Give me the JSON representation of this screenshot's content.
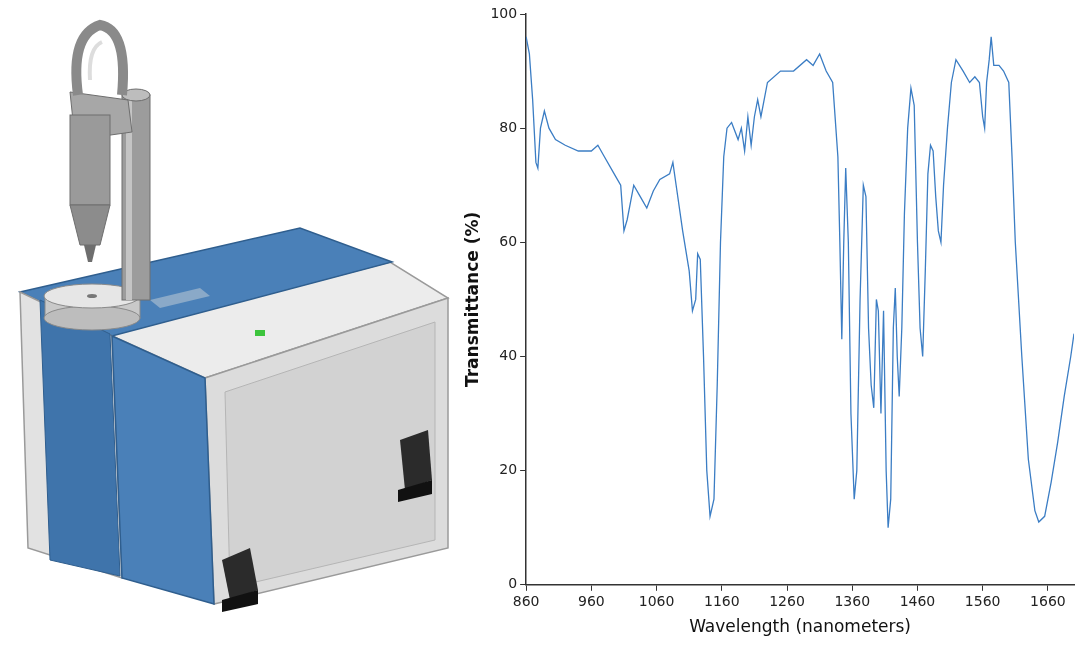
{
  "chart_data": {
    "type": "line",
    "x_label": "Wavelength (nanometers)",
    "y_label": "Transmittance (%)",
    "color": "#3b7dc4",
    "grid": false,
    "xlim": [
      860,
      1700
    ],
    "xticks": [
      860,
      960,
      1060,
      1160,
      1260,
      1360,
      1460,
      1560,
      1660
    ],
    "ylim": [
      0,
      100
    ],
    "yticks": [
      0,
      20,
      40,
      60,
      80,
      100
    ],
    "x": [
      860,
      865,
      870,
      875,
      878,
      882,
      888,
      895,
      905,
      920,
      940,
      960,
      970,
      980,
      995,
      1005,
      1010,
      1015,
      1025,
      1035,
      1045,
      1055,
      1065,
      1080,
      1085,
      1090,
      1100,
      1110,
      1115,
      1120,
      1123,
      1127,
      1132,
      1137,
      1142,
      1148,
      1153,
      1158,
      1163,
      1168,
      1175,
      1185,
      1190,
      1195,
      1200,
      1205,
      1210,
      1215,
      1220,
      1230,
      1250,
      1270,
      1290,
      1300,
      1310,
      1320,
      1330,
      1338,
      1341,
      1344,
      1347,
      1350,
      1354,
      1358,
      1363,
      1367,
      1372,
      1377,
      1381,
      1385,
      1389,
      1393,
      1397,
      1400,
      1404,
      1408,
      1412,
      1415,
      1419,
      1423,
      1426,
      1429,
      1432,
      1436,
      1440,
      1445,
      1450,
      1455,
      1460,
      1464,
      1468,
      1472,
      1476,
      1480,
      1484,
      1488,
      1492,
      1496,
      1500,
      1506,
      1512,
      1519,
      1530,
      1540,
      1548,
      1555,
      1560,
      1563,
      1566,
      1570,
      1573,
      1577,
      1585,
      1592,
      1600,
      1605,
      1610,
      1620,
      1630,
      1640,
      1646,
      1655,
      1665,
      1675,
      1685,
      1695,
      1700
    ],
    "values": [
      96,
      93,
      85,
      74,
      73,
      80,
      83,
      80,
      78,
      77,
      76,
      76,
      77,
      75,
      72,
      70,
      62,
      64,
      70,
      68,
      66,
      69,
      71,
      72,
      74,
      70,
      62,
      55,
      48,
      50,
      58,
      57,
      40,
      20,
      12,
      15,
      35,
      60,
      75,
      80,
      81,
      78,
      80,
      76,
      82,
      77,
      82,
      85,
      82,
      88,
      90,
      90,
      92,
      91,
      93,
      90,
      88,
      75,
      60,
      43,
      60,
      73,
      60,
      30,
      15,
      20,
      50,
      70,
      68,
      45,
      35,
      31,
      50,
      48,
      30,
      48,
      20,
      10,
      15,
      45,
      52,
      40,
      33,
      45,
      65,
      80,
      87,
      84,
      60,
      45,
      40,
      55,
      72,
      77,
      76,
      68,
      62,
      60,
      70,
      80,
      88,
      92,
      90,
      88,
      89,
      88,
      82,
      80,
      88,
      92,
      96,
      91,
      91,
      90,
      88,
      75,
      60,
      40,
      22,
      13,
      11,
      12,
      18,
      25,
      33,
      40,
      44
    ]
  }
}
